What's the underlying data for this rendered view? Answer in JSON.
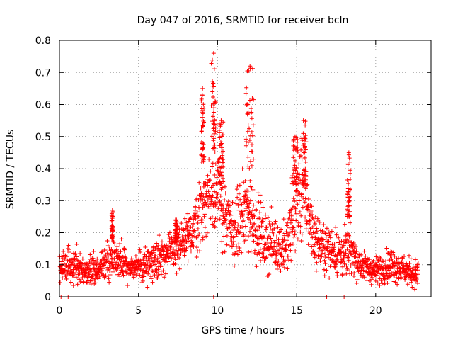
{
  "chart_data": {
    "type": "scatter",
    "title": "Day 047 of 2016, SRMTID for receiver bcln",
    "xlabel": "GPS time / hours",
    "ylabel": "SRMTID / TECUs",
    "xlim": [
      0,
      23.5
    ],
    "ylim": [
      0,
      0.8
    ],
    "xticks": [
      0,
      5,
      10,
      15,
      20
    ],
    "yticks": [
      0,
      0.1,
      0.2,
      0.3,
      0.4,
      0.5,
      0.6,
      0.7,
      0.8
    ],
    "xtick_labels": [
      "0",
      "5",
      "10",
      "15",
      "20"
    ],
    "ytick_labels": [
      "0",
      "0.1",
      "0.2",
      "0.3",
      "0.4",
      "0.5",
      "0.6",
      "0.7",
      "0.8"
    ],
    "grid": true,
    "marker": "+",
    "color": "#ff0000",
    "series": [
      {
        "name": "SRMTID",
        "profile": [
          [
            0.0,
            0.09,
            0.03
          ],
          [
            0.5,
            0.1,
            0.04
          ],
          [
            1.0,
            0.1,
            0.04
          ],
          [
            1.5,
            0.08,
            0.03
          ],
          [
            2.0,
            0.08,
            0.03
          ],
          [
            2.5,
            0.09,
            0.03
          ],
          [
            3.0,
            0.11,
            0.04
          ],
          [
            3.5,
            0.12,
            0.05
          ],
          [
            4.0,
            0.11,
            0.04
          ],
          [
            4.5,
            0.09,
            0.03
          ],
          [
            5.0,
            0.09,
            0.03
          ],
          [
            5.5,
            0.1,
            0.04
          ],
          [
            6.0,
            0.12,
            0.04
          ],
          [
            6.5,
            0.13,
            0.04
          ],
          [
            7.0,
            0.14,
            0.04
          ],
          [
            7.5,
            0.15,
            0.05
          ],
          [
            8.0,
            0.17,
            0.05
          ],
          [
            8.5,
            0.22,
            0.06
          ],
          [
            9.0,
            0.28,
            0.08
          ],
          [
            9.5,
            0.33,
            0.08
          ],
          [
            10.0,
            0.33,
            0.1
          ],
          [
            10.5,
            0.24,
            0.06
          ],
          [
            11.0,
            0.2,
            0.07
          ],
          [
            11.5,
            0.25,
            0.08
          ],
          [
            12.0,
            0.28,
            0.1
          ],
          [
            12.5,
            0.22,
            0.07
          ],
          [
            13.0,
            0.17,
            0.06
          ],
          [
            13.5,
            0.17,
            0.06
          ],
          [
            14.0,
            0.15,
            0.05
          ],
          [
            14.5,
            0.17,
            0.06
          ],
          [
            15.0,
            0.3,
            0.1
          ],
          [
            15.5,
            0.33,
            0.1
          ],
          [
            16.0,
            0.2,
            0.06
          ],
          [
            16.5,
            0.16,
            0.05
          ],
          [
            17.0,
            0.15,
            0.05
          ],
          [
            17.5,
            0.14,
            0.05
          ],
          [
            18.0,
            0.13,
            0.05
          ],
          [
            18.5,
            0.14,
            0.05
          ],
          [
            19.0,
            0.1,
            0.03
          ],
          [
            19.5,
            0.09,
            0.03
          ],
          [
            20.0,
            0.08,
            0.03
          ],
          [
            20.5,
            0.09,
            0.03
          ],
          [
            21.0,
            0.1,
            0.04
          ],
          [
            21.5,
            0.09,
            0.03
          ],
          [
            22.0,
            0.08,
            0.03
          ],
          [
            22.7,
            0.07,
            0.03
          ]
        ],
        "peaks": [
          [
            8.95,
            9.15,
            0.42,
            0.65
          ],
          [
            9.6,
            9.9,
            0.45,
            0.76
          ],
          [
            10.1,
            10.35,
            0.35,
            0.55
          ],
          [
            11.8,
            12.3,
            0.4,
            0.72
          ],
          [
            14.7,
            15.1,
            0.35,
            0.5
          ],
          [
            15.25,
            15.6,
            0.35,
            0.55
          ],
          [
            18.2,
            18.4,
            0.25,
            0.45
          ],
          [
            3.3,
            3.4,
            0.18,
            0.27
          ],
          [
            7.3,
            7.5,
            0.17,
            0.24
          ]
        ],
        "zero_points": [
          0.1,
          0.55,
          9.75,
          16.9,
          18.0
        ]
      }
    ]
  }
}
